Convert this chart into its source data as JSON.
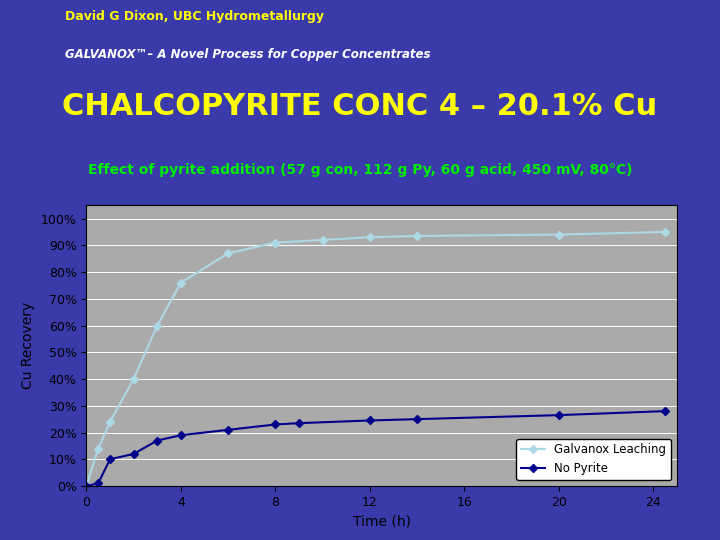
{
  "title_main": "CHALCOPYRITE CONC 4 – 20.1% Cu",
  "subtitle": "Effect of pyrite addition (57 g con, 112 g Py, 60 g acid, 450 mV, 80°C)",
  "header_line1": "David G Dixon, UBC Hydrometallurgy",
  "header_line2": "GALVANOX™– A Novel Process for Copper Concentrates",
  "xlabel": "Time (h)",
  "ylabel": "Cu Recovery",
  "background_slide": "#3a3aaa",
  "plot_bg": "#aaaaaa",
  "title_color": "#ffff00",
  "subtitle_color": "#00ee00",
  "header_text_color1": "#ffff00",
  "header_text_color2": "#ffffff",
  "galvanox_x": [
    0,
    0.5,
    1,
    2,
    3,
    4,
    6,
    8,
    10,
    12,
    14,
    20,
    24.5
  ],
  "galvanox_y": [
    0,
    0.14,
    0.24,
    0.4,
    0.6,
    0.76,
    0.87,
    0.91,
    0.92,
    0.93,
    0.935,
    0.94,
    0.95
  ],
  "nopyrite_x": [
    0,
    0.5,
    1,
    2,
    3,
    4,
    6,
    8,
    9,
    12,
    14,
    20,
    24.5
  ],
  "nopyrite_y": [
    0,
    0.01,
    0.1,
    0.12,
    0.17,
    0.19,
    0.21,
    0.23,
    0.235,
    0.245,
    0.25,
    0.265,
    0.28
  ],
  "galvanox_color": "#add8e6",
  "nopyrite_color": "#00008b",
  "legend_label1": "Galvanox Leaching",
  "legend_label2": "No Pyrite",
  "xlim": [
    0,
    25
  ],
  "ylim": [
    0,
    1.05
  ],
  "xticks": [
    0,
    4,
    8,
    12,
    16,
    20,
    24
  ],
  "yticks": [
    0,
    0.1,
    0.2,
    0.3,
    0.4,
    0.5,
    0.6,
    0.7,
    0.8,
    0.9,
    1.0
  ]
}
